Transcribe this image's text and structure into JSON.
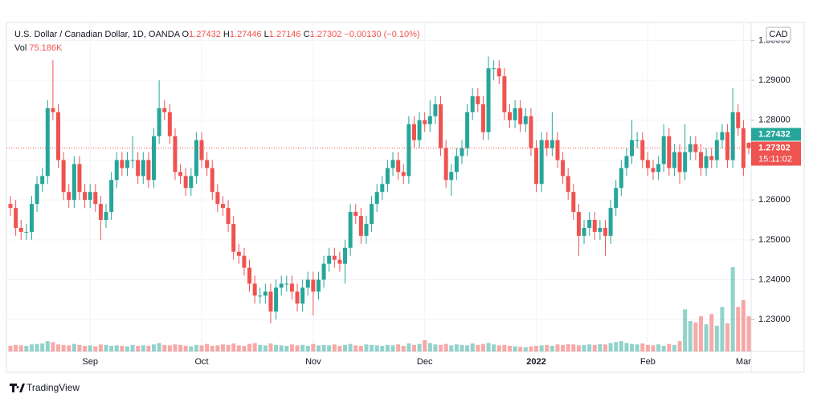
{
  "chart_data": {
    "type": "candlestick",
    "legend": {
      "title": "U.S. Dollar / Canadian Dollar, 1D, OANDA",
      "labels": [
        "O",
        "H",
        "L",
        "C"
      ],
      "change": "−0.00130",
      "change_pct": "(−0.10%)",
      "volume_label": "Vol",
      "volume": "75.186K"
    },
    "currency": "CAD",
    "countdown": "15:11:02",
    "brand": "TradingView",
    "up_color": "#26a69a",
    "down_color": "#ef5350",
    "ylim": [
      1.222,
      1.3041
    ],
    "yticks": [
      {
        "value": 1.23,
        "label": "1.23000"
      },
      {
        "value": 1.24,
        "label": "1.24000"
      },
      {
        "value": 1.25,
        "label": "1.25000"
      },
      {
        "value": 1.26,
        "label": "1.26000"
      },
      {
        "value": 1.27,
        "label": "1.27000"
      },
      {
        "value": 1.28,
        "label": "1.28000"
      },
      {
        "value": 1.29,
        "label": "1.29000"
      },
      {
        "value": 1.3,
        "label": "1.30000"
      }
    ],
    "categories": [
      null,
      null,
      null,
      null,
      null,
      null,
      null,
      null,
      null,
      null,
      null,
      null,
      null,
      null,
      null,
      "Sep",
      null,
      null,
      null,
      null,
      null,
      null,
      null,
      null,
      null,
      null,
      null,
      null,
      null,
      null,
      null,
      null,
      null,
      null,
      null,
      null,
      "Oct",
      null,
      null,
      null,
      null,
      null,
      null,
      null,
      null,
      null,
      null,
      null,
      null,
      null,
      null,
      null,
      null,
      null,
      null,
      null,
      null,
      "Nov",
      null,
      null,
      null,
      null,
      null,
      null,
      null,
      null,
      null,
      null,
      null,
      null,
      null,
      null,
      null,
      null,
      null,
      null,
      null,
      null,
      "Dec",
      null,
      null,
      null,
      null,
      null,
      null,
      null,
      null,
      null,
      null,
      null,
      null,
      null,
      null,
      null,
      null,
      null,
      null,
      null,
      null,
      "2022",
      null,
      null,
      null,
      null,
      null,
      null,
      null,
      null,
      null,
      null,
      null,
      null,
      null,
      null,
      null,
      null,
      null,
      null,
      null,
      null,
      "Feb",
      null,
      null,
      null,
      null,
      null,
      null,
      null,
      null,
      null,
      null,
      null,
      null,
      null,
      null,
      null,
      null,
      null,
      "Mar",
      null
    ],
    "open": [
      1.259,
      1.258,
      1.253,
      1.252,
      1.252,
      1.259,
      1.264,
      1.266,
      1.283,
      1.282,
      1.27,
      1.262,
      1.26,
      1.269,
      1.262,
      1.26,
      1.262,
      1.259,
      1.255,
      1.257,
      1.265,
      1.27,
      1.268,
      1.27,
      1.27,
      1.266,
      1.27,
      1.265,
      1.276,
      1.283,
      1.282,
      1.276,
      1.267,
      1.266,
      1.263,
      1.266,
      1.275,
      1.27,
      1.268,
      1.262,
      1.259,
      1.258,
      1.254,
      1.247,
      1.246,
      1.243,
      1.239,
      1.236,
      1.236,
      1.237,
      1.232,
      1.238,
      1.239,
      1.239,
      1.237,
      1.234,
      1.238,
      1.24,
      1.237,
      1.24,
      1.244,
      1.246,
      1.245,
      1.244,
      1.248,
      1.257,
      1.256,
      1.251,
      1.254,
      1.259,
      1.262,
      1.264,
      1.268,
      1.27,
      1.267,
      1.266,
      1.279,
      1.275,
      1.28,
      1.279,
      1.281,
      1.284,
      1.273,
      1.265,
      1.267,
      1.271,
      1.273,
      1.282,
      1.286,
      1.284,
      1.277,
      1.293,
      1.293,
      1.291,
      1.282,
      1.28,
      1.283,
      1.279,
      1.281,
      1.273,
      1.264,
      1.275,
      1.273,
      1.275,
      1.27,
      1.266,
      1.262,
      1.257,
      1.251,
      1.253,
      1.255,
      1.252,
      1.253,
      1.251,
      1.258,
      1.263,
      1.268,
      1.271,
      1.275,
      1.275,
      1.27,
      1.268,
      1.267,
      1.269,
      1.276,
      1.268,
      1.272,
      1.267,
      1.272,
      1.274,
      1.272,
      1.268,
      1.271,
      1.27,
      1.275,
      1.277,
      1.27,
      1.282,
      1.278,
      1.27432
    ],
    "high": [
      1.261,
      1.26,
      1.255,
      1.254,
      1.261,
      1.266,
      1.268,
      1.285,
      1.295,
      1.284,
      1.272,
      1.264,
      1.271,
      1.271,
      1.264,
      1.264,
      1.264,
      1.261,
      1.259,
      1.267,
      1.272,
      1.272,
      1.272,
      1.276,
      1.272,
      1.272,
      1.272,
      1.278,
      1.29,
      1.285,
      1.284,
      1.278,
      1.269,
      1.268,
      1.268,
      1.277,
      1.277,
      1.272,
      1.27,
      1.264,
      1.261,
      1.26,
      1.256,
      1.249,
      1.248,
      1.245,
      1.241,
      1.238,
      1.239,
      1.239,
      1.24,
      1.241,
      1.241,
      1.241,
      1.239,
      1.24,
      1.242,
      1.242,
      1.242,
      1.246,
      1.248,
      1.248,
      1.247,
      1.25,
      1.259,
      1.259,
      1.258,
      1.256,
      1.261,
      1.264,
      1.266,
      1.27,
      1.272,
      1.272,
      1.269,
      1.281,
      1.281,
      1.282,
      1.282,
      1.285,
      1.286,
      1.286,
      1.275,
      1.269,
      1.273,
      1.275,
      1.284,
      1.288,
      1.288,
      1.286,
      1.296,
      1.295,
      1.295,
      1.293,
      1.284,
      1.285,
      1.285,
      1.283,
      1.283,
      1.275,
      1.277,
      1.277,
      1.282,
      1.277,
      1.272,
      1.268,
      1.264,
      1.259,
      1.255,
      1.257,
      1.257,
      1.255,
      1.255,
      1.26,
      1.265,
      1.27,
      1.273,
      1.28,
      1.277,
      1.277,
      1.272,
      1.27,
      1.271,
      1.279,
      1.278,
      1.274,
      1.274,
      1.279,
      1.276,
      1.276,
      1.274,
      1.273,
      1.273,
      1.277,
      1.279,
      1.279,
      1.288,
      1.284,
      1.28,
      1.27446
    ],
    "low": [
      1.256,
      1.251,
      1.25,
      1.25,
      1.25,
      1.257,
      1.262,
      1.264,
      1.28,
      1.268,
      1.26,
      1.258,
      1.258,
      1.26,
      1.258,
      1.258,
      1.257,
      1.25,
      1.253,
      1.255,
      1.263,
      1.266,
      1.266,
      1.268,
      1.264,
      1.264,
      1.263,
      1.263,
      1.274,
      1.28,
      1.274,
      1.265,
      1.264,
      1.261,
      1.261,
      1.264,
      1.268,
      1.266,
      1.26,
      1.257,
      1.256,
      1.252,
      1.245,
      1.244,
      1.241,
      1.237,
      1.234,
      1.234,
      1.234,
      1.229,
      1.23,
      1.236,
      1.237,
      1.235,
      1.232,
      1.232,
      1.236,
      1.231,
      1.235,
      1.238,
      1.242,
      1.243,
      1.242,
      1.239,
      1.246,
      1.254,
      1.249,
      1.249,
      1.252,
      1.257,
      1.26,
      1.262,
      1.266,
      1.265,
      1.264,
      1.264,
      1.273,
      1.273,
      1.277,
      1.277,
      1.279,
      1.271,
      1.263,
      1.261,
      1.265,
      1.269,
      1.271,
      1.28,
      1.282,
      1.275,
      1.275,
      1.29,
      1.289,
      1.28,
      1.278,
      1.278,
      1.277,
      1.277,
      1.271,
      1.262,
      1.262,
      1.271,
      1.271,
      1.268,
      1.264,
      1.26,
      1.255,
      1.246,
      1.249,
      1.251,
      1.25,
      1.25,
      1.246,
      1.249,
      1.256,
      1.261,
      1.266,
      1.269,
      1.273,
      1.268,
      1.266,
      1.265,
      1.265,
      1.267,
      1.266,
      1.266,
      1.264,
      1.265,
      1.27,
      1.27,
      1.266,
      1.266,
      1.268,
      1.268,
      1.273,
      1.268,
      1.268,
      1.276,
      1.266,
      1.27146
    ],
    "close": [
      1.258,
      1.253,
      1.252,
      1.252,
      1.259,
      1.264,
      1.266,
      1.283,
      1.282,
      1.27,
      1.262,
      1.26,
      1.269,
      1.262,
      1.26,
      1.262,
      1.259,
      1.255,
      1.257,
      1.265,
      1.27,
      1.268,
      1.27,
      1.27,
      1.266,
      1.27,
      1.265,
      1.276,
      1.283,
      1.282,
      1.276,
      1.267,
      1.266,
      1.263,
      1.266,
      1.275,
      1.27,
      1.268,
      1.262,
      1.259,
      1.258,
      1.254,
      1.247,
      1.246,
      1.243,
      1.239,
      1.236,
      1.236,
      1.237,
      1.232,
      1.238,
      1.239,
      1.239,
      1.237,
      1.234,
      1.238,
      1.24,
      1.237,
      1.24,
      1.244,
      1.246,
      1.245,
      1.244,
      1.248,
      1.257,
      1.256,
      1.251,
      1.254,
      1.259,
      1.262,
      1.264,
      1.268,
      1.27,
      1.267,
      1.266,
      1.279,
      1.275,
      1.28,
      1.279,
      1.281,
      1.284,
      1.273,
      1.265,
      1.267,
      1.271,
      1.273,
      1.282,
      1.286,
      1.284,
      1.277,
      1.293,
      1.293,
      1.291,
      1.282,
      1.28,
      1.283,
      1.279,
      1.281,
      1.273,
      1.264,
      1.275,
      1.273,
      1.275,
      1.27,
      1.266,
      1.262,
      1.257,
      1.251,
      1.253,
      1.255,
      1.252,
      1.253,
      1.251,
      1.258,
      1.263,
      1.268,
      1.271,
      1.275,
      1.275,
      1.27,
      1.268,
      1.267,
      1.269,
      1.276,
      1.268,
      1.272,
      1.267,
      1.272,
      1.274,
      1.272,
      1.268,
      1.271,
      1.27,
      1.275,
      1.277,
      1.27,
      1.282,
      1.278,
      1.268,
      1.27302
    ],
    "volume": [
      12,
      14,
      13,
      12,
      15,
      16,
      17,
      22,
      20,
      15,
      14,
      13,
      16,
      14,
      12,
      13,
      11,
      15,
      14,
      12,
      13,
      12,
      11,
      14,
      12,
      13,
      12,
      15,
      18,
      14,
      13,
      15,
      14,
      12,
      11,
      14,
      13,
      16,
      12,
      13,
      15,
      14,
      17,
      13,
      12,
      16,
      18,
      14,
      13,
      17,
      14,
      13,
      12,
      15,
      13,
      14,
      12,
      16,
      13,
      14,
      13,
      15,
      12,
      14,
      16,
      13,
      12,
      15,
      14,
      13,
      12,
      14,
      13,
      15,
      12,
      17,
      14,
      16,
      24,
      18,
      15,
      14,
      16,
      13,
      15,
      14,
      13,
      17,
      14,
      16,
      18,
      15,
      13,
      14,
      12,
      11,
      10,
      9,
      11,
      12,
      13,
      14,
      12,
      15,
      14,
      16,
      15,
      13,
      14,
      15,
      14,
      16,
      15,
      18,
      20,
      22,
      18,
      16,
      15,
      17,
      14,
      13,
      15,
      12,
      16,
      14,
      22,
      90,
      65,
      62,
      75,
      58,
      80,
      55,
      95,
      60,
      180,
      95,
      110,
      75.186
    ]
  }
}
